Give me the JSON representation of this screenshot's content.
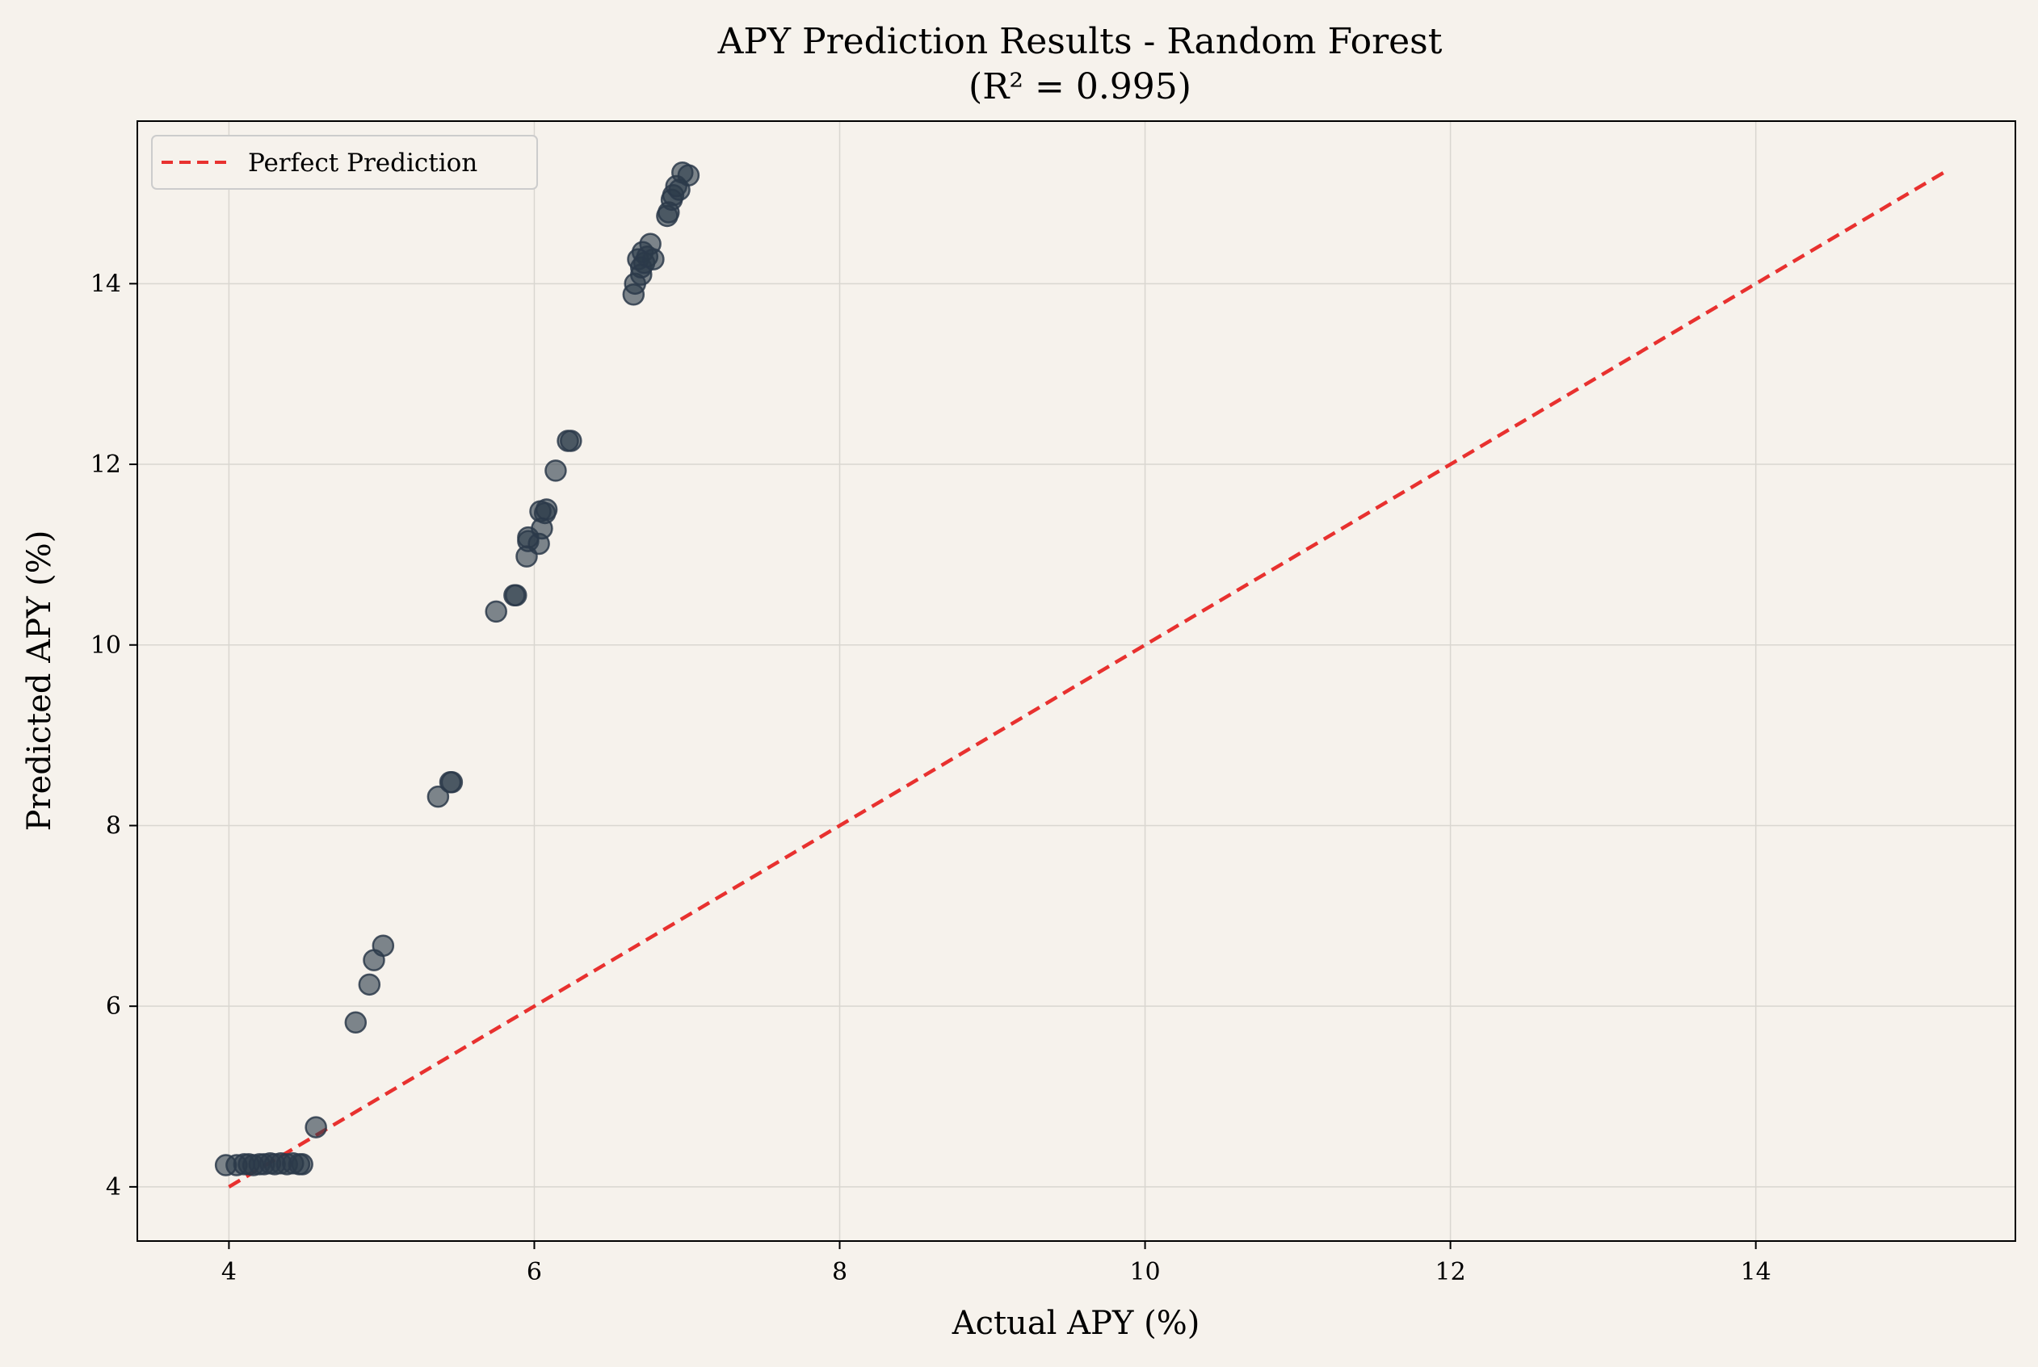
{
  "chart_data": {
    "type": "scatter",
    "title_line1": "APY Prediction Results - Random Forest",
    "title_line2": "(R² = 0.995)",
    "xlabel": "Actual APY (%)",
    "ylabel": "Predicted APY (%)",
    "xlim": [
      3.4,
      15.7
    ],
    "ylim": [
      3.4,
      15.8
    ],
    "x_ticks": [
      4,
      6,
      8,
      10,
      12,
      14
    ],
    "y_ticks": [
      4,
      6,
      8,
      10,
      12,
      14
    ],
    "grid": true,
    "legend_position": "top-left",
    "point_color": "#2b3a4a",
    "line_color": "#e8312f",
    "background": "#f6f2ec",
    "perfect_line": {
      "name": "Perfect Prediction",
      "x": [
        4.0,
        15.25
      ],
      "y": [
        4.0,
        15.25
      ]
    },
    "points": [
      {
        "x": 3.98,
        "y": 4.24
      },
      {
        "x": 4.05,
        "y": 4.24
      },
      {
        "x": 4.1,
        "y": 4.25
      },
      {
        "x": 4.13,
        "y": 4.25
      },
      {
        "x": 4.16,
        "y": 4.24
      },
      {
        "x": 4.2,
        "y": 4.25
      },
      {
        "x": 4.23,
        "y": 4.25
      },
      {
        "x": 4.27,
        "y": 4.26
      },
      {
        "x": 4.3,
        "y": 4.25
      },
      {
        "x": 4.34,
        "y": 4.26
      },
      {
        "x": 4.38,
        "y": 4.25
      },
      {
        "x": 4.42,
        "y": 4.26
      },
      {
        "x": 4.46,
        "y": 4.25
      },
      {
        "x": 4.48,
        "y": 4.25
      },
      {
        "x": 4.57,
        "y": 4.66
      },
      {
        "x": 4.83,
        "y": 5.82
      },
      {
        "x": 4.92,
        "y": 6.24
      },
      {
        "x": 4.95,
        "y": 6.51
      },
      {
        "x": 5.01,
        "y": 6.67
      },
      {
        "x": 5.37,
        "y": 8.32
      },
      {
        "x": 5.45,
        "y": 8.48
      },
      {
        "x": 5.46,
        "y": 8.48
      },
      {
        "x": 5.75,
        "y": 10.37
      },
      {
        "x": 5.87,
        "y": 10.55
      },
      {
        "x": 5.88,
        "y": 10.55
      },
      {
        "x": 5.95,
        "y": 10.98
      },
      {
        "x": 5.96,
        "y": 11.15
      },
      {
        "x": 5.96,
        "y": 11.19
      },
      {
        "x": 6.03,
        "y": 11.12
      },
      {
        "x": 6.05,
        "y": 11.29
      },
      {
        "x": 6.04,
        "y": 11.48
      },
      {
        "x": 6.07,
        "y": 11.46
      },
      {
        "x": 6.08,
        "y": 11.5
      },
      {
        "x": 6.14,
        "y": 11.93
      },
      {
        "x": 6.22,
        "y": 12.26
      },
      {
        "x": 6.24,
        "y": 12.26
      },
      {
        "x": 6.65,
        "y": 13.88
      },
      {
        "x": 6.66,
        "y": 14.0
      },
      {
        "x": 6.68,
        "y": 14.27
      },
      {
        "x": 6.7,
        "y": 14.1
      },
      {
        "x": 6.7,
        "y": 14.18
      },
      {
        "x": 6.71,
        "y": 14.35
      },
      {
        "x": 6.72,
        "y": 14.23
      },
      {
        "x": 6.74,
        "y": 14.3
      },
      {
        "x": 6.76,
        "y": 14.44
      },
      {
        "x": 6.78,
        "y": 14.27
      },
      {
        "x": 6.87,
        "y": 14.75
      },
      {
        "x": 6.88,
        "y": 14.79
      },
      {
        "x": 6.9,
        "y": 14.93
      },
      {
        "x": 6.91,
        "y": 14.98
      },
      {
        "x": 6.93,
        "y": 15.08
      },
      {
        "x": 6.95,
        "y": 15.04
      },
      {
        "x": 6.97,
        "y": 15.23
      },
      {
        "x": 7.01,
        "y": 15.2
      }
    ]
  }
}
